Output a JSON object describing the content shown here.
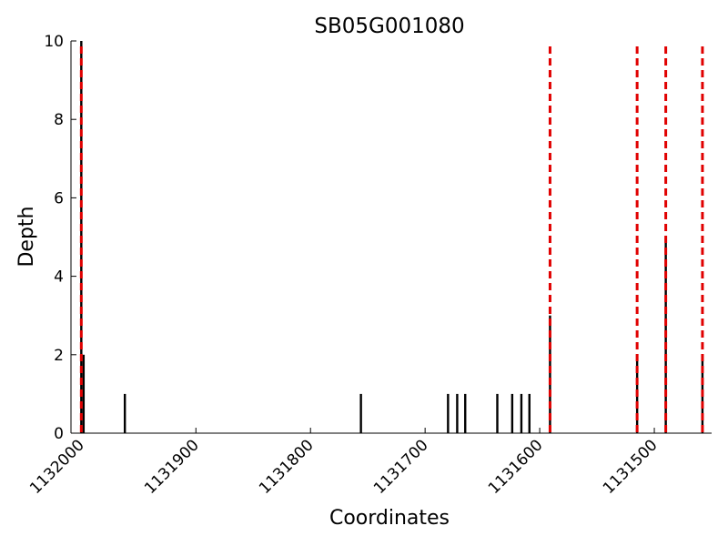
{
  "chart_data": {
    "type": "bar",
    "title": "SB05G001080",
    "xlabel": "Coordinates",
    "ylabel": "Depth",
    "x_reversed": true,
    "xlim": [
      1132009,
      1131450
    ],
    "ylim": [
      0,
      10
    ],
    "xticks": [
      1132000,
      1131900,
      1131800,
      1131700,
      1131600,
      1131500
    ],
    "xtick_labels": [
      "1132000",
      "1131900",
      "1131800",
      "1131700",
      "1131600",
      "1131500"
    ],
    "yticks": [
      0,
      2,
      4,
      6,
      8,
      10
    ],
    "ytick_labels": [
      "0",
      "2",
      "4",
      "6",
      "8",
      "10"
    ],
    "bar_color": "#000000",
    "series": [
      {
        "x": [
          1132000,
          1131998,
          1131962,
          1131756,
          1131680,
          1131672,
          1131665,
          1131637,
          1131624,
          1131616,
          1131609,
          1131591,
          1131515,
          1131490,
          1131458
        ],
        "values": [
          10,
          2,
          1,
          1,
          1,
          1,
          1,
          1,
          1,
          1,
          1,
          3,
          2,
          5,
          2
        ]
      }
    ],
    "marker_lines": {
      "color": "#e00000",
      "style": "dashed",
      "x": [
        1132000,
        1131591,
        1131515,
        1131490,
        1131458
      ]
    }
  }
}
